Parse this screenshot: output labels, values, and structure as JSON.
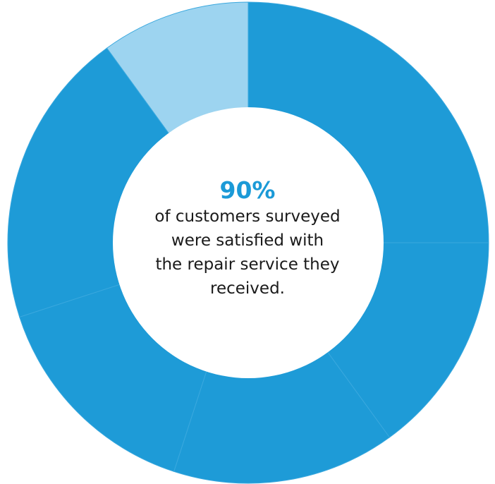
{
  "chart_data": {
    "type": "pie",
    "donut": true,
    "segments": [
      {
        "value": 25,
        "color": "#1e9bd7"
      },
      {
        "value": 15,
        "color": "#1e9bd7"
      },
      {
        "value": 15,
        "color": "#1e9bd7"
      },
      {
        "value": 15,
        "color": "#1e9bd7"
      },
      {
        "value": 20,
        "color": "#1e9bd7"
      },
      {
        "value": 10,
        "color": "#9dd4f0"
      }
    ],
    "divider_color": "#3aa8de",
    "center": {
      "headline": "90%",
      "lines": [
        "of customers surveyed",
        "were satisfied with",
        "the repair service they",
        "received."
      ]
    }
  }
}
